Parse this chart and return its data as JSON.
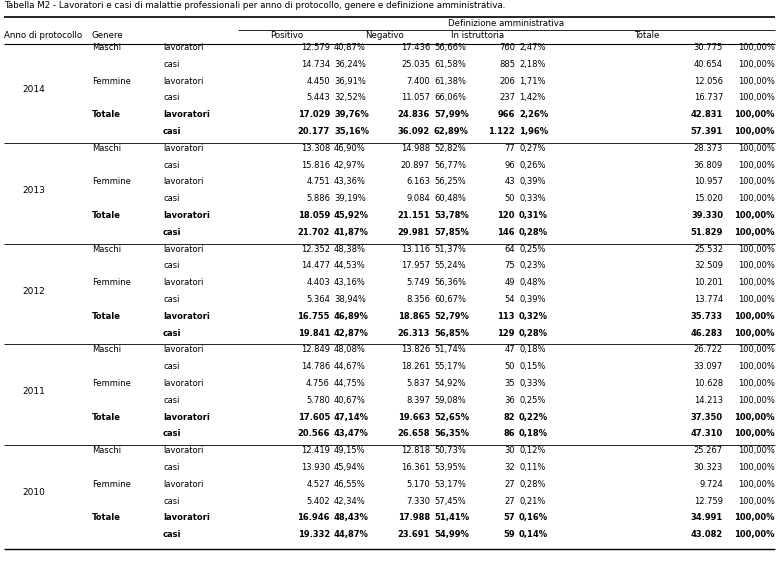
{
  "title": "Tabella M2 - Lavoratori e casi di malattie professionali per anno di protocollo, genere e definizione amministrativa.",
  "rows": [
    {
      "anno": "2014",
      "genere": "Maschi",
      "tipo": "lavoratori",
      "pos_n": "12.579",
      "pos_p": "40,87%",
      "neg_n": "17.436",
      "neg_p": "56,66%",
      "istr_n": "760",
      "istr_p": "2,47%",
      "tot_n": "30.775",
      "tot_p": "100,00%",
      "bold": false
    },
    {
      "anno": "",
      "genere": "",
      "tipo": "casi",
      "pos_n": "14.734",
      "pos_p": "36,24%",
      "neg_n": "25.035",
      "neg_p": "61,58%",
      "istr_n": "885",
      "istr_p": "2,18%",
      "tot_n": "40.654",
      "tot_p": "100,00%",
      "bold": false
    },
    {
      "anno": "",
      "genere": "Femmine",
      "tipo": "lavoratori",
      "pos_n": "4.450",
      "pos_p": "36,91%",
      "neg_n": "7.400",
      "neg_p": "61,38%",
      "istr_n": "206",
      "istr_p": "1,71%",
      "tot_n": "12.056",
      "tot_p": "100,00%",
      "bold": false
    },
    {
      "anno": "",
      "genere": "",
      "tipo": "casi",
      "pos_n": "5.443",
      "pos_p": "32,52%",
      "neg_n": "11.057",
      "neg_p": "66,06%",
      "istr_n": "237",
      "istr_p": "1,42%",
      "tot_n": "16.737",
      "tot_p": "100,00%",
      "bold": false
    },
    {
      "anno": "",
      "genere": "Totale",
      "tipo": "lavoratori",
      "pos_n": "17.029",
      "pos_p": "39,76%",
      "neg_n": "24.836",
      "neg_p": "57,99%",
      "istr_n": "966",
      "istr_p": "2,26%",
      "tot_n": "42.831",
      "tot_p": "100,00%",
      "bold": true
    },
    {
      "anno": "",
      "genere": "",
      "tipo": "casi",
      "pos_n": "20.177",
      "pos_p": "35,16%",
      "neg_n": "36.092",
      "neg_p": "62,89%",
      "istr_n": "1.122",
      "istr_p": "1,96%",
      "tot_n": "57.391",
      "tot_p": "100,00%",
      "bold": true
    },
    {
      "anno": "2013",
      "genere": "Maschi",
      "tipo": "lavoratori",
      "pos_n": "13.308",
      "pos_p": "46,90%",
      "neg_n": "14.988",
      "neg_p": "52,82%",
      "istr_n": "77",
      "istr_p": "0,27%",
      "tot_n": "28.373",
      "tot_p": "100,00%",
      "bold": false
    },
    {
      "anno": "",
      "genere": "",
      "tipo": "casi",
      "pos_n": "15.816",
      "pos_p": "42,97%",
      "neg_n": "20.897",
      "neg_p": "56,77%",
      "istr_n": "96",
      "istr_p": "0,26%",
      "tot_n": "36.809",
      "tot_p": "100,00%",
      "bold": false
    },
    {
      "anno": "",
      "genere": "Femmine",
      "tipo": "lavoratori",
      "pos_n": "4.751",
      "pos_p": "43,36%",
      "neg_n": "6.163",
      "neg_p": "56,25%",
      "istr_n": "43",
      "istr_p": "0,39%",
      "tot_n": "10.957",
      "tot_p": "100,00%",
      "bold": false
    },
    {
      "anno": "",
      "genere": "",
      "tipo": "casi",
      "pos_n": "5.886",
      "pos_p": "39,19%",
      "neg_n": "9.084",
      "neg_p": "60,48%",
      "istr_n": "50",
      "istr_p": "0,33%",
      "tot_n": "15.020",
      "tot_p": "100,00%",
      "bold": false
    },
    {
      "anno": "",
      "genere": "Totale",
      "tipo": "lavoratori",
      "pos_n": "18.059",
      "pos_p": "45,92%",
      "neg_n": "21.151",
      "neg_p": "53,78%",
      "istr_n": "120",
      "istr_p": "0,31%",
      "tot_n": "39.330",
      "tot_p": "100,00%",
      "bold": true
    },
    {
      "anno": "",
      "genere": "",
      "tipo": "casi",
      "pos_n": "21.702",
      "pos_p": "41,87%",
      "neg_n": "29.981",
      "neg_p": "57,85%",
      "istr_n": "146",
      "istr_p": "0,28%",
      "tot_n": "51.829",
      "tot_p": "100,00%",
      "bold": true
    },
    {
      "anno": "2012",
      "genere": "Maschi",
      "tipo": "lavoratori",
      "pos_n": "12.352",
      "pos_p": "48,38%",
      "neg_n": "13.116",
      "neg_p": "51,37%",
      "istr_n": "64",
      "istr_p": "0,25%",
      "tot_n": "25.532",
      "tot_p": "100,00%",
      "bold": false
    },
    {
      "anno": "",
      "genere": "",
      "tipo": "casi",
      "pos_n": "14.477",
      "pos_p": "44,53%",
      "neg_n": "17.957",
      "neg_p": "55,24%",
      "istr_n": "75",
      "istr_p": "0,23%",
      "tot_n": "32.509",
      "tot_p": "100,00%",
      "bold": false
    },
    {
      "anno": "",
      "genere": "Femmine",
      "tipo": "lavoratori",
      "pos_n": "4.403",
      "pos_p": "43,16%",
      "neg_n": "5.749",
      "neg_p": "56,36%",
      "istr_n": "49",
      "istr_p": "0,48%",
      "tot_n": "10.201",
      "tot_p": "100,00%",
      "bold": false
    },
    {
      "anno": "",
      "genere": "",
      "tipo": "casi",
      "pos_n": "5.364",
      "pos_p": "38,94%",
      "neg_n": "8.356",
      "neg_p": "60,67%",
      "istr_n": "54",
      "istr_p": "0,39%",
      "tot_n": "13.774",
      "tot_p": "100,00%",
      "bold": false
    },
    {
      "anno": "",
      "genere": "Totale",
      "tipo": "lavoratori",
      "pos_n": "16.755",
      "pos_p": "46,89%",
      "neg_n": "18.865",
      "neg_p": "52,79%",
      "istr_n": "113",
      "istr_p": "0,32%",
      "tot_n": "35.733",
      "tot_p": "100,00%",
      "bold": true
    },
    {
      "anno": "",
      "genere": "",
      "tipo": "casi",
      "pos_n": "19.841",
      "pos_p": "42,87%",
      "neg_n": "26.313",
      "neg_p": "56,85%",
      "istr_n": "129",
      "istr_p": "0,28%",
      "tot_n": "46.283",
      "tot_p": "100,00%",
      "bold": true
    },
    {
      "anno": "2011",
      "genere": "Maschi",
      "tipo": "lavoratori",
      "pos_n": "12.849",
      "pos_p": "48,08%",
      "neg_n": "13.826",
      "neg_p": "51,74%",
      "istr_n": "47",
      "istr_p": "0,18%",
      "tot_n": "26.722",
      "tot_p": "100,00%",
      "bold": false
    },
    {
      "anno": "",
      "genere": "",
      "tipo": "casi",
      "pos_n": "14.786",
      "pos_p": "44,67%",
      "neg_n": "18.261",
      "neg_p": "55,17%",
      "istr_n": "50",
      "istr_p": "0,15%",
      "tot_n": "33.097",
      "tot_p": "100,00%",
      "bold": false
    },
    {
      "anno": "",
      "genere": "Femmine",
      "tipo": "lavoratori",
      "pos_n": "4.756",
      "pos_p": "44,75%",
      "neg_n": "5.837",
      "neg_p": "54,92%",
      "istr_n": "35",
      "istr_p": "0,33%",
      "tot_n": "10.628",
      "tot_p": "100,00%",
      "bold": false
    },
    {
      "anno": "",
      "genere": "",
      "tipo": "casi",
      "pos_n": "5.780",
      "pos_p": "40,67%",
      "neg_n": "8.397",
      "neg_p": "59,08%",
      "istr_n": "36",
      "istr_p": "0,25%",
      "tot_n": "14.213",
      "tot_p": "100,00%",
      "bold": false
    },
    {
      "anno": "",
      "genere": "Totale",
      "tipo": "lavoratori",
      "pos_n": "17.605",
      "pos_p": "47,14%",
      "neg_n": "19.663",
      "neg_p": "52,65%",
      "istr_n": "82",
      "istr_p": "0,22%",
      "tot_n": "37.350",
      "tot_p": "100,00%",
      "bold": true
    },
    {
      "anno": "",
      "genere": "",
      "tipo": "casi",
      "pos_n": "20.566",
      "pos_p": "43,47%",
      "neg_n": "26.658",
      "neg_p": "56,35%",
      "istr_n": "86",
      "istr_p": "0,18%",
      "tot_n": "47.310",
      "tot_p": "100,00%",
      "bold": true
    },
    {
      "anno": "2010",
      "genere": "Maschi",
      "tipo": "lavoratori",
      "pos_n": "12.419",
      "pos_p": "49,15%",
      "neg_n": "12.818",
      "neg_p": "50,73%",
      "istr_n": "30",
      "istr_p": "0,12%",
      "tot_n": "25.267",
      "tot_p": "100,00%",
      "bold": false
    },
    {
      "anno": "",
      "genere": "",
      "tipo": "casi",
      "pos_n": "13.930",
      "pos_p": "45,94%",
      "neg_n": "16.361",
      "neg_p": "53,95%",
      "istr_n": "32",
      "istr_p": "0,11%",
      "tot_n": "30.323",
      "tot_p": "100,00%",
      "bold": false
    },
    {
      "anno": "",
      "genere": "Femmine",
      "tipo": "lavoratori",
      "pos_n": "4.527",
      "pos_p": "46,55%",
      "neg_n": "5.170",
      "neg_p": "53,17%",
      "istr_n": "27",
      "istr_p": "0,28%",
      "tot_n": "9.724",
      "tot_p": "100,00%",
      "bold": false
    },
    {
      "anno": "",
      "genere": "",
      "tipo": "casi",
      "pos_n": "5.402",
      "pos_p": "42,34%",
      "neg_n": "7.330",
      "neg_p": "57,45%",
      "istr_n": "27",
      "istr_p": "0,21%",
      "tot_n": "12.759",
      "tot_p": "100,00%",
      "bold": false
    },
    {
      "anno": "",
      "genere": "Totale",
      "tipo": "lavoratori",
      "pos_n": "16.946",
      "pos_p": "48,43%",
      "neg_n": "17.988",
      "neg_p": "51,41%",
      "istr_n": "57",
      "istr_p": "0,16%",
      "tot_n": "34.991",
      "tot_p": "100,00%",
      "bold": true
    },
    {
      "anno": "",
      "genere": "",
      "tipo": "casi",
      "pos_n": "19.332",
      "pos_p": "44,87%",
      "neg_n": "23.691",
      "neg_p": "54,99%",
      "istr_n": "59",
      "istr_p": "0,14%",
      "tot_n": "43.082",
      "tot_p": "100,00%",
      "bold": true
    }
  ],
  "figw": 7.81,
  "figh": 5.86,
  "dpi": 100
}
